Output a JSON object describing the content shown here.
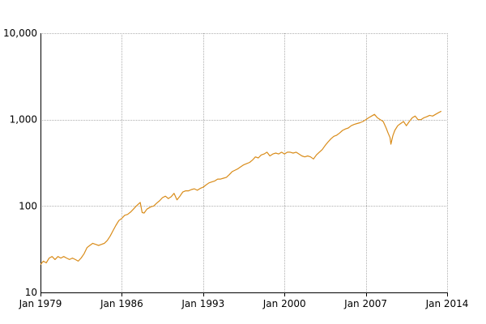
{
  "chart_data": {
    "type": "line",
    "title": "",
    "xlabel": "",
    "ylabel": "",
    "y_scale": "log",
    "grid": true,
    "legend": "none",
    "ylim": [
      10,
      10000
    ],
    "xlim": [
      "1979-01-01",
      "2014-01-01"
    ],
    "x_ticks": [
      {
        "label": "Jan 1979",
        "date": "1979-01-01"
      },
      {
        "label": "Jan 1986",
        "date": "1986-01-01"
      },
      {
        "label": "Jan 1993",
        "date": "1993-01-01"
      },
      {
        "label": "Jan 2000",
        "date": "2000-01-01"
      },
      {
        "label": "Jan 2007",
        "date": "2007-01-01"
      },
      {
        "label": "Jan 2014",
        "date": "2014-01-01"
      }
    ],
    "y_ticks": [
      {
        "label": "10",
        "value": 10
      },
      {
        "label": "100",
        "value": 100
      },
      {
        "label": "1,000",
        "value": 1000
      },
      {
        "label": "10,000",
        "value": 10000
      }
    ],
    "series": [
      {
        "color": "#d98c1a",
        "x": [
          "1979-01-01",
          "1979-04-01",
          "1979-07-01",
          "1979-10-01",
          "1980-01-01",
          "1980-04-01",
          "1980-07-01",
          "1980-10-01",
          "1981-01-01",
          "1981-04-01",
          "1981-07-01",
          "1981-10-01",
          "1982-01-01",
          "1982-04-01",
          "1982-07-01",
          "1982-10-01",
          "1983-01-01",
          "1983-04-01",
          "1983-07-01",
          "1983-10-01",
          "1984-01-01",
          "1984-04-01",
          "1984-07-01",
          "1984-10-01",
          "1985-01-01",
          "1985-04-01",
          "1985-07-01",
          "1985-10-01",
          "1986-01-01",
          "1986-04-01",
          "1986-07-01",
          "1986-10-01",
          "1987-01-01",
          "1987-04-01",
          "1987-08-01",
          "1987-10-01",
          "1987-12-01",
          "1988-03-01",
          "1988-07-01",
          "1988-10-01",
          "1989-01-01",
          "1989-04-01",
          "1989-07-01",
          "1989-10-01",
          "1990-01-01",
          "1990-04-01",
          "1990-07-01",
          "1990-10-01",
          "1991-01-01",
          "1991-04-01",
          "1991-07-01",
          "1991-10-01",
          "1992-01-01",
          "1992-04-01",
          "1992-07-01",
          "1992-10-01",
          "1993-01-01",
          "1993-04-01",
          "1993-07-01",
          "1993-10-01",
          "1994-01-01",
          "1994-04-01",
          "1994-07-01",
          "1994-10-01",
          "1995-01-01",
          "1995-04-01",
          "1995-07-01",
          "1995-10-01",
          "1996-01-01",
          "1996-04-01",
          "1996-07-01",
          "1996-10-01",
          "1997-01-01",
          "1997-04-01",
          "1997-07-01",
          "1997-10-01",
          "1998-01-01",
          "1998-04-01",
          "1998-07-01",
          "1998-10-01",
          "1999-01-01",
          "1999-04-01",
          "1999-07-01",
          "1999-10-01",
          "2000-01-01",
          "2000-04-01",
          "2000-07-01",
          "2000-10-01",
          "2001-01-01",
          "2001-04-01",
          "2001-07-01",
          "2001-10-01",
          "2002-01-01",
          "2002-04-01",
          "2002-07-01",
          "2002-10-01",
          "2003-01-01",
          "2003-04-01",
          "2003-07-01",
          "2003-10-01",
          "2004-01-01",
          "2004-04-01",
          "2004-07-01",
          "2004-10-01",
          "2005-01-01",
          "2005-04-01",
          "2005-07-01",
          "2005-10-01",
          "2006-01-01",
          "2006-04-01",
          "2006-07-01",
          "2006-10-01",
          "2007-01-01",
          "2007-04-01",
          "2007-07-01",
          "2007-10-01",
          "2008-01-01",
          "2008-04-01",
          "2008-07-01",
          "2008-10-01",
          "2008-12-01",
          "2009-02-01",
          "2009-03-01",
          "2009-05-01",
          "2009-07-01",
          "2009-10-01",
          "2010-01-01",
          "2010-04-01",
          "2010-07-01",
          "2010-10-01",
          "2011-01-01",
          "2011-04-01",
          "2011-07-01",
          "2011-10-01",
          "2012-01-01",
          "2012-04-01",
          "2012-07-01",
          "2012-10-01",
          "2013-01-01",
          "2013-04-01",
          "2013-07-01"
        ],
        "y": [
          21,
          23,
          22,
          25,
          26,
          24,
          26,
          25,
          26,
          25,
          24,
          25,
          24,
          23,
          25,
          28,
          33,
          35,
          37,
          36,
          35,
          36,
          37,
          40,
          45,
          52,
          60,
          68,
          72,
          78,
          80,
          85,
          92,
          100,
          110,
          84,
          83,
          92,
          98,
          100,
          108,
          115,
          125,
          130,
          122,
          128,
          140,
          118,
          130,
          145,
          150,
          150,
          155,
          158,
          152,
          160,
          165,
          175,
          185,
          190,
          195,
          205,
          205,
          210,
          215,
          230,
          250,
          260,
          270,
          285,
          300,
          310,
          320,
          340,
          370,
          360,
          390,
          400,
          420,
          380,
          400,
          410,
          400,
          420,
          400,
          420,
          420,
          410,
          420,
          400,
          380,
          370,
          380,
          370,
          350,
          390,
          420,
          450,
          500,
          550,
          600,
          640,
          660,
          700,
          750,
          780,
          800,
          850,
          880,
          900,
          920,
          950,
          1000,
          1050,
          1100,
          1150,
          1050,
          1000,
          950,
          800,
          700,
          620,
          520,
          650,
          750,
          850,
          900,
          950,
          850,
          950,
          1050,
          1100,
          1000,
          1000,
          1050,
          1080,
          1120,
          1100,
          1150,
          1200,
          1250
        ]
      }
    ]
  }
}
